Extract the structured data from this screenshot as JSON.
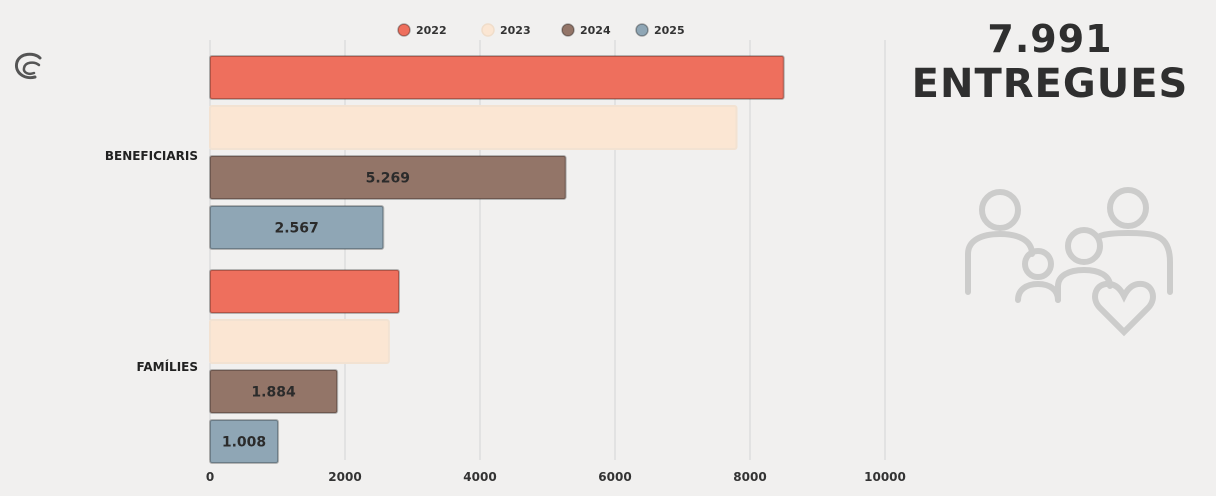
{
  "headline": {
    "count": "7.991",
    "label": "ENTREGUES"
  },
  "icons": {
    "logo": "swirl-logo-icon",
    "people": "family-heart-icon"
  },
  "colors": {
    "2022": "#ee6f5d",
    "2023": "#fbe6d3",
    "2024": "#937568",
    "2025": "#8fa6b5"
  },
  "chart_data": {
    "type": "bar",
    "orientation": "horizontal",
    "categories": [
      "BENEFICIARIS",
      "FAMÍLIES"
    ],
    "series": [
      {
        "name": "2022",
        "values": [
          8500,
          2800
        ]
      },
      {
        "name": "2023",
        "values": [
          7800,
          2650
        ]
      },
      {
        "name": "2024",
        "values": [
          5269,
          1884
        ]
      },
      {
        "name": "2025",
        "values": [
          2567,
          1008
        ]
      }
    ],
    "data_labels": [
      [
        "",
        ""
      ],
      [
        "",
        ""
      ],
      [
        "5.269",
        "1.884"
      ],
      [
        "2.567",
        "1.008"
      ]
    ],
    "xticks": [
      "0",
      "2000",
      "4000",
      "6000",
      "8000",
      "10000"
    ],
    "xlim": [
      0,
      10000
    ],
    "grid": true,
    "legend_placement": "top"
  }
}
